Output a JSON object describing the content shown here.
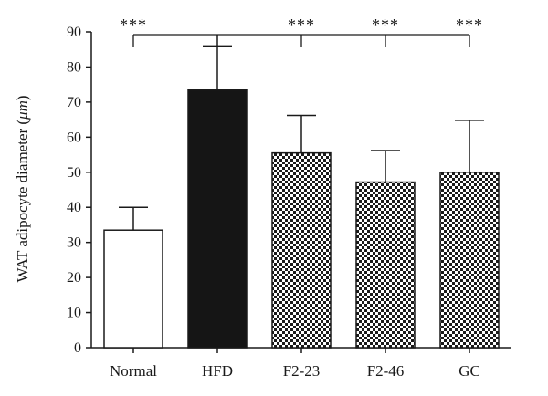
{
  "chart_data": {
    "type": "bar",
    "categories": [
      "Normal",
      "HFD",
      "F2-23",
      "F2-46",
      "GC"
    ],
    "values": [
      33.5,
      73.5,
      55.5,
      47.2,
      50.0
    ],
    "error_upper": [
      40.0,
      86.0,
      66.2,
      56.2,
      64.8
    ],
    "bar_fills": [
      "white",
      "black",
      "checker",
      "checker",
      "checker"
    ],
    "ylabel_prefix": "WAT adipocyte diameter (",
    "ylabel_unit": "μm",
    "ylabel_suffix": ")",
    "ylim": [
      0,
      90
    ],
    "yticks": [
      0,
      10,
      20,
      30,
      40,
      50,
      60,
      70,
      80,
      90
    ],
    "significance": [
      {
        "from": "Normal",
        "to": "HFD",
        "label": "***"
      },
      {
        "from": "HFD",
        "to": "F2-23",
        "label": "***"
      },
      {
        "from": "HFD",
        "to": "F2-46",
        "label": "***"
      },
      {
        "from": "HFD",
        "to": "GC",
        "label": "***"
      }
    ],
    "grid": false,
    "colors": {
      "axis": "#1a1a1a",
      "bar_dark": "#151515",
      "bar_light": "#ffffff"
    }
  }
}
